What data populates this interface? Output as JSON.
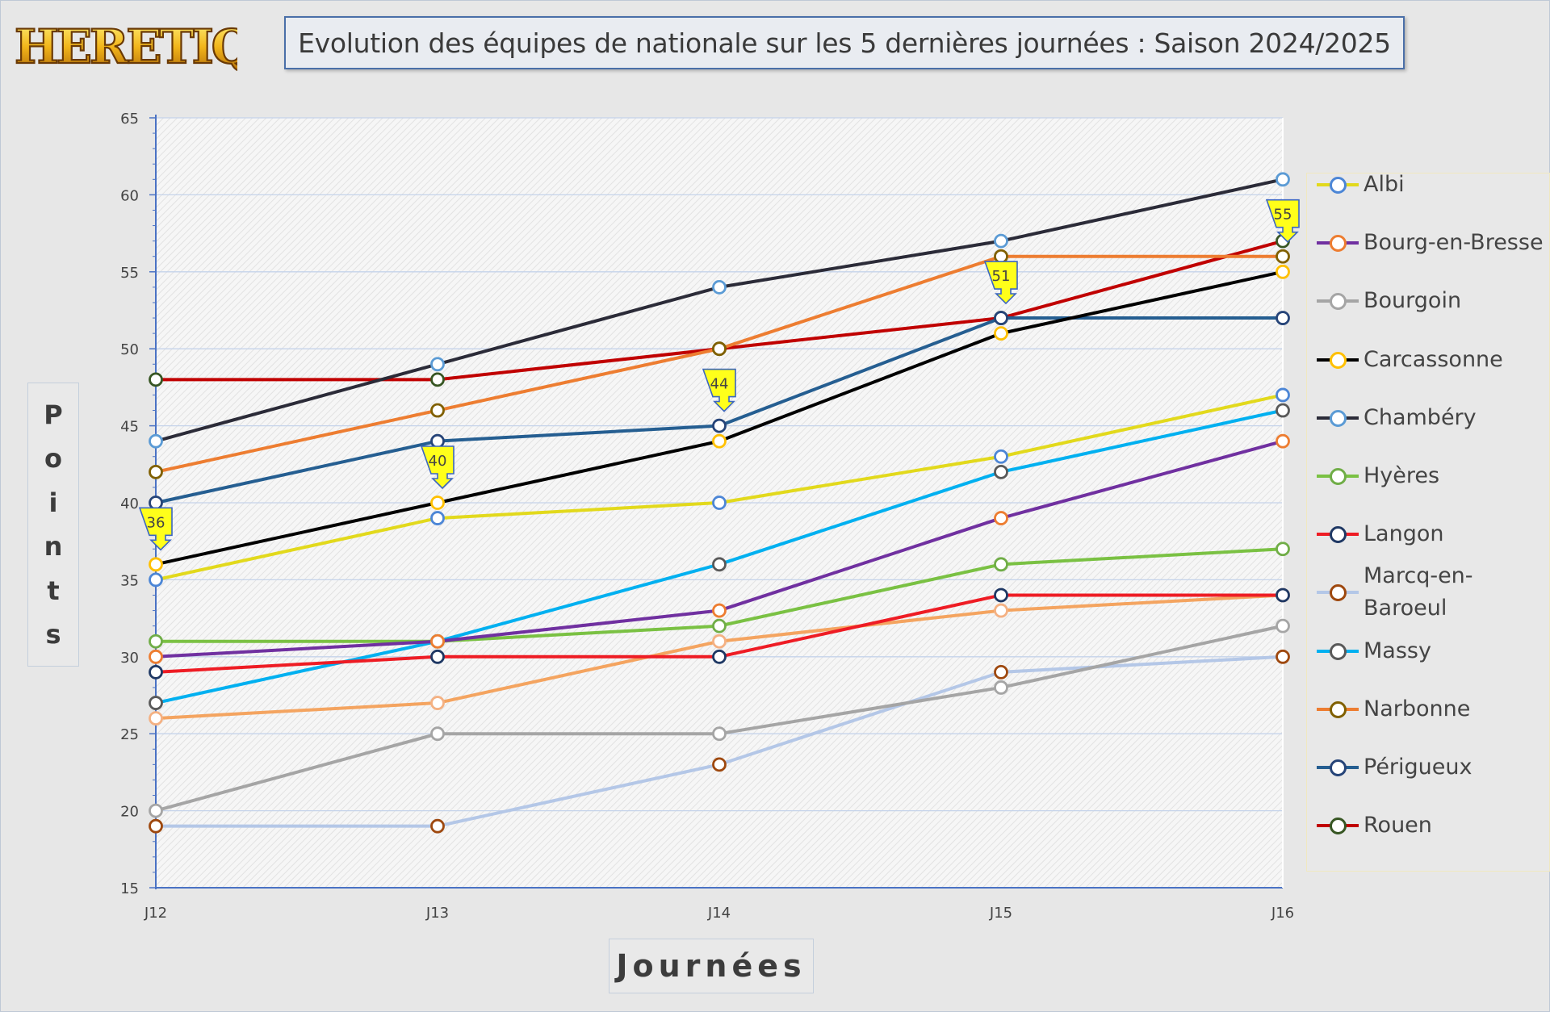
{
  "logo": {
    "text": "HERETIQUES"
  },
  "title": "Evolution des équipes de nationale sur les 5 dernières journées : Saison 2024/2025",
  "chart_data": {
    "type": "line",
    "title": "Evolution des équipes de nationale sur les 5 dernières journées : Saison 2024/2025",
    "xlabel": "Journées",
    "ylabel": "Points",
    "categories": [
      "J12",
      "J13",
      "J14",
      "J15",
      "J16"
    ],
    "ylim": [
      15,
      65
    ],
    "yticks": [
      15,
      20,
      25,
      30,
      35,
      40,
      45,
      50,
      55,
      60,
      65
    ],
    "grid": true,
    "legend": "right",
    "series": [
      {
        "name": "Albi",
        "values": [
          35,
          39,
          40,
          43,
          47
        ],
        "color": "#e2d91c",
        "marker": "#4c86d6"
      },
      {
        "name": "Bourg-en-Bresse",
        "values": [
          30,
          31,
          33,
          39,
          44
        ],
        "color": "#7030a0",
        "marker": "#ed7d31"
      },
      {
        "name": "Bourgoin",
        "values": [
          20,
          25,
          25,
          28,
          32
        ],
        "color": "#a5a5a5",
        "marker": "#a5a5a5"
      },
      {
        "name": "Carcassonne",
        "values": [
          36,
          40,
          44,
          51,
          55
        ],
        "color": "#000000",
        "marker": "#ffc000"
      },
      {
        "name": "Chambéry",
        "values": [
          44,
          49,
          54,
          57,
          61
        ],
        "color": "#2b2b38",
        "marker": "#5b9bd5"
      },
      {
        "name": "Hyères",
        "values": [
          31,
          31,
          32,
          36,
          37
        ],
        "color": "#7ac143",
        "marker": "#70ad47"
      },
      {
        "name": "Langon",
        "values": [
          29,
          30,
          30,
          34,
          34
        ],
        "color": "#ee1c24",
        "marker": "#1f3864"
      },
      {
        "name": "Marcq-en-Baroeul",
        "values": [
          19,
          19,
          23,
          29,
          30
        ],
        "color": "#b4c7e7",
        "marker": "#9e480e"
      },
      {
        "name": "Massy",
        "values": [
          27,
          31,
          36,
          42,
          46
        ],
        "color": "#00b0f0",
        "marker": "#595959"
      },
      {
        "name": "Narbonne",
        "values": [
          42,
          46,
          50,
          56,
          56
        ],
        "color": "#ed7d31",
        "marker": "#806000"
      },
      {
        "name": "Périgueux",
        "values": [
          40,
          44,
          45,
          52,
          52
        ],
        "color": "#255e91",
        "marker": "#264478"
      },
      {
        "name": "Rouen",
        "values": [
          48,
          48,
          50,
          52,
          57
        ],
        "color": "#c00000",
        "marker": "#375623"
      },
      {
        "name": "",
        "values": [
          26,
          27,
          31,
          33,
          34
        ],
        "color": "#f4a460",
        "marker": "#f4b183"
      }
    ],
    "annotations": [
      {
        "x": "J12",
        "y": 36,
        "text": "36"
      },
      {
        "x": "J13",
        "y": 40,
        "text": "40"
      },
      {
        "x": "J14",
        "y": 45,
        "text": "44"
      },
      {
        "x": "J15",
        "y": 52,
        "text": "51"
      },
      {
        "x": "J16",
        "y": 56,
        "text": "55"
      }
    ]
  }
}
